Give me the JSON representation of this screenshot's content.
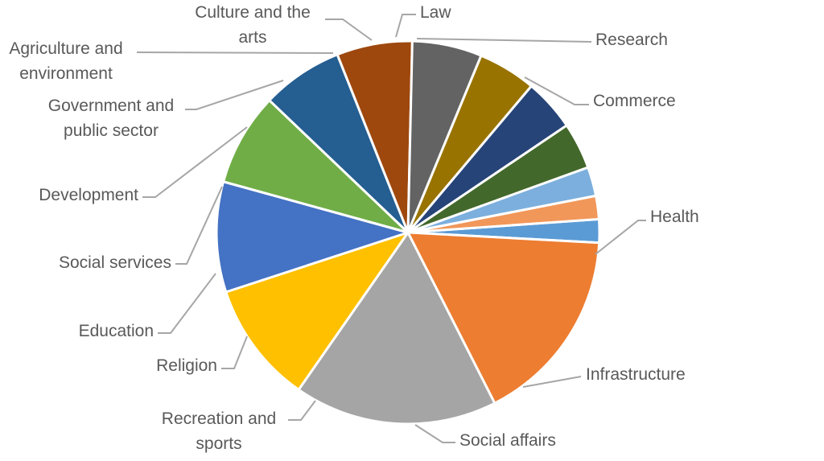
{
  "chart_data": {
    "type": "pie",
    "title": "",
    "slices": [
      {
        "label": "Research",
        "value": 2,
        "color": "#5b9bd5"
      },
      {
        "label": "Commerce",
        "value": 17,
        "color": "#ed7d31"
      },
      {
        "label": "Health",
        "value": 17.5,
        "color": "#a5a5a5"
      },
      {
        "label": "Infrastructure",
        "value": 10.5,
        "color": "#ffc000"
      },
      {
        "label": "Social affairs",
        "value": 9.5,
        "color": "#4472c4"
      },
      {
        "label": "Recreation and sports",
        "value": 8,
        "color": "#70ad47"
      },
      {
        "label": "Religion",
        "value": 7,
        "color": "#255e91"
      },
      {
        "label": "Education",
        "value": 6.5,
        "color": "#9e480e"
      },
      {
        "label": "Social services",
        "value": 6,
        "color": "#636363"
      },
      {
        "label": "Development",
        "value": 5,
        "color": "#997300"
      },
      {
        "label": "Government and public sector",
        "value": 4.5,
        "color": "#264478"
      },
      {
        "label": "Agriculture and environment",
        "value": 4,
        "color": "#43682b"
      },
      {
        "label": "Culture and the arts",
        "value": 2.5,
        "color": "#7cafdd"
      },
      {
        "label": "Law",
        "value": 2,
        "color": "#f1975a"
      }
    ],
    "legend": "none",
    "data_labels": "category names with leader lines"
  }
}
